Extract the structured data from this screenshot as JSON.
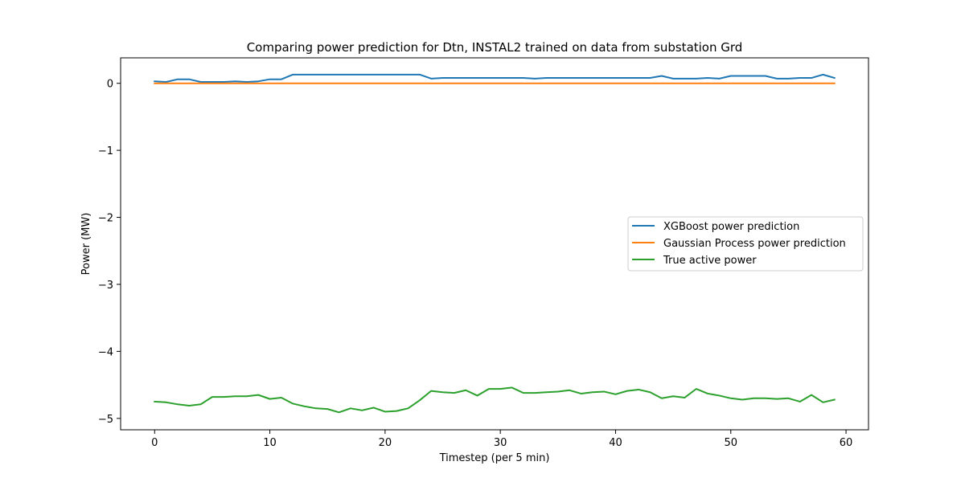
{
  "chart_data": {
    "type": "line",
    "title": "Comparing power prediction for Dtn, INSTAL2 trained on data from substation Grd",
    "xlabel": "Timestep (per 5 min)",
    "ylabel": "Power (MW)",
    "xlim": [
      -2.95,
      61.95
    ],
    "ylim": [
      -5.17,
      0.38
    ],
    "xticks": [
      0,
      10,
      20,
      30,
      40,
      50,
      60
    ],
    "xtick_labels": [
      "0",
      "10",
      "20",
      "30",
      "40",
      "50",
      "60"
    ],
    "yticks": [
      0,
      -1,
      -2,
      -3,
      -4,
      -5
    ],
    "ytick_labels": [
      "0",
      "−1",
      "−2",
      "−3",
      "−4",
      "−5"
    ],
    "grid": false,
    "legend_position": "center-right",
    "x": [
      0,
      1,
      2,
      3,
      4,
      5,
      6,
      7,
      8,
      9,
      10,
      11,
      12,
      13,
      14,
      15,
      16,
      17,
      18,
      19,
      20,
      21,
      22,
      23,
      24,
      25,
      26,
      27,
      28,
      29,
      30,
      31,
      32,
      33,
      34,
      35,
      36,
      37,
      38,
      39,
      40,
      41,
      42,
      43,
      44,
      45,
      46,
      47,
      48,
      49,
      50,
      51,
      52,
      53,
      54,
      55,
      56,
      57,
      58,
      59
    ],
    "series": [
      {
        "name": "XGBoost power prediction",
        "color": "#1f77b4",
        "values": [
          0.03,
          0.02,
          0.06,
          0.06,
          0.02,
          0.02,
          0.02,
          0.03,
          0.02,
          0.03,
          0.06,
          0.06,
          0.13,
          0.13,
          0.13,
          0.13,
          0.13,
          0.13,
          0.13,
          0.13,
          0.13,
          0.13,
          0.13,
          0.13,
          0.07,
          0.08,
          0.08,
          0.08,
          0.08,
          0.08,
          0.08,
          0.08,
          0.08,
          0.07,
          0.08,
          0.08,
          0.08,
          0.08,
          0.08,
          0.08,
          0.08,
          0.08,
          0.08,
          0.08,
          0.11,
          0.07,
          0.07,
          0.07,
          0.08,
          0.07,
          0.11,
          0.11,
          0.11,
          0.11,
          0.07,
          0.07,
          0.08,
          0.08,
          0.13,
          0.08
        ]
      },
      {
        "name": "Gaussian Process power prediction",
        "color": "#ff7f0e",
        "values": [
          0.0,
          0.0,
          0.0,
          0.0,
          0.0,
          0.0,
          0.0,
          0.0,
          0.0,
          0.0,
          0.0,
          0.0,
          0.0,
          0.0,
          0.0,
          0.0,
          0.0,
          0.0,
          0.0,
          0.0,
          0.0,
          0.0,
          0.0,
          0.0,
          0.0,
          0.0,
          0.0,
          0.0,
          0.0,
          0.0,
          0.0,
          0.0,
          0.0,
          0.0,
          0.0,
          0.0,
          0.0,
          0.0,
          0.0,
          0.0,
          0.0,
          0.0,
          0.0,
          0.0,
          0.0,
          0.0,
          0.0,
          0.0,
          0.0,
          0.0,
          0.0,
          0.0,
          0.0,
          0.0,
          0.0,
          0.0,
          0.0,
          0.0,
          0.0,
          0.0
        ]
      },
      {
        "name": "True active power",
        "color": "#2ca02c",
        "values": [
          -4.75,
          -4.76,
          -4.79,
          -4.81,
          -4.79,
          -4.68,
          -4.68,
          -4.67,
          -4.67,
          -4.65,
          -4.71,
          -4.69,
          -4.78,
          -4.82,
          -4.85,
          -4.86,
          -4.91,
          -4.85,
          -4.88,
          -4.84,
          -4.9,
          -4.89,
          -4.85,
          -4.73,
          -4.59,
          -4.61,
          -4.62,
          -4.58,
          -4.66,
          -4.56,
          -4.56,
          -4.54,
          -4.62,
          -4.62,
          -4.61,
          -4.6,
          -4.58,
          -4.63,
          -4.61,
          -4.6,
          -4.64,
          -4.59,
          -4.57,
          -4.61,
          -4.7,
          -4.67,
          -4.69,
          -4.56,
          -4.63,
          -4.66,
          -4.7,
          -4.72,
          -4.7,
          -4.7,
          -4.71,
          -4.7,
          -4.75,
          -4.65,
          -4.76,
          -4.72
        ]
      }
    ]
  }
}
